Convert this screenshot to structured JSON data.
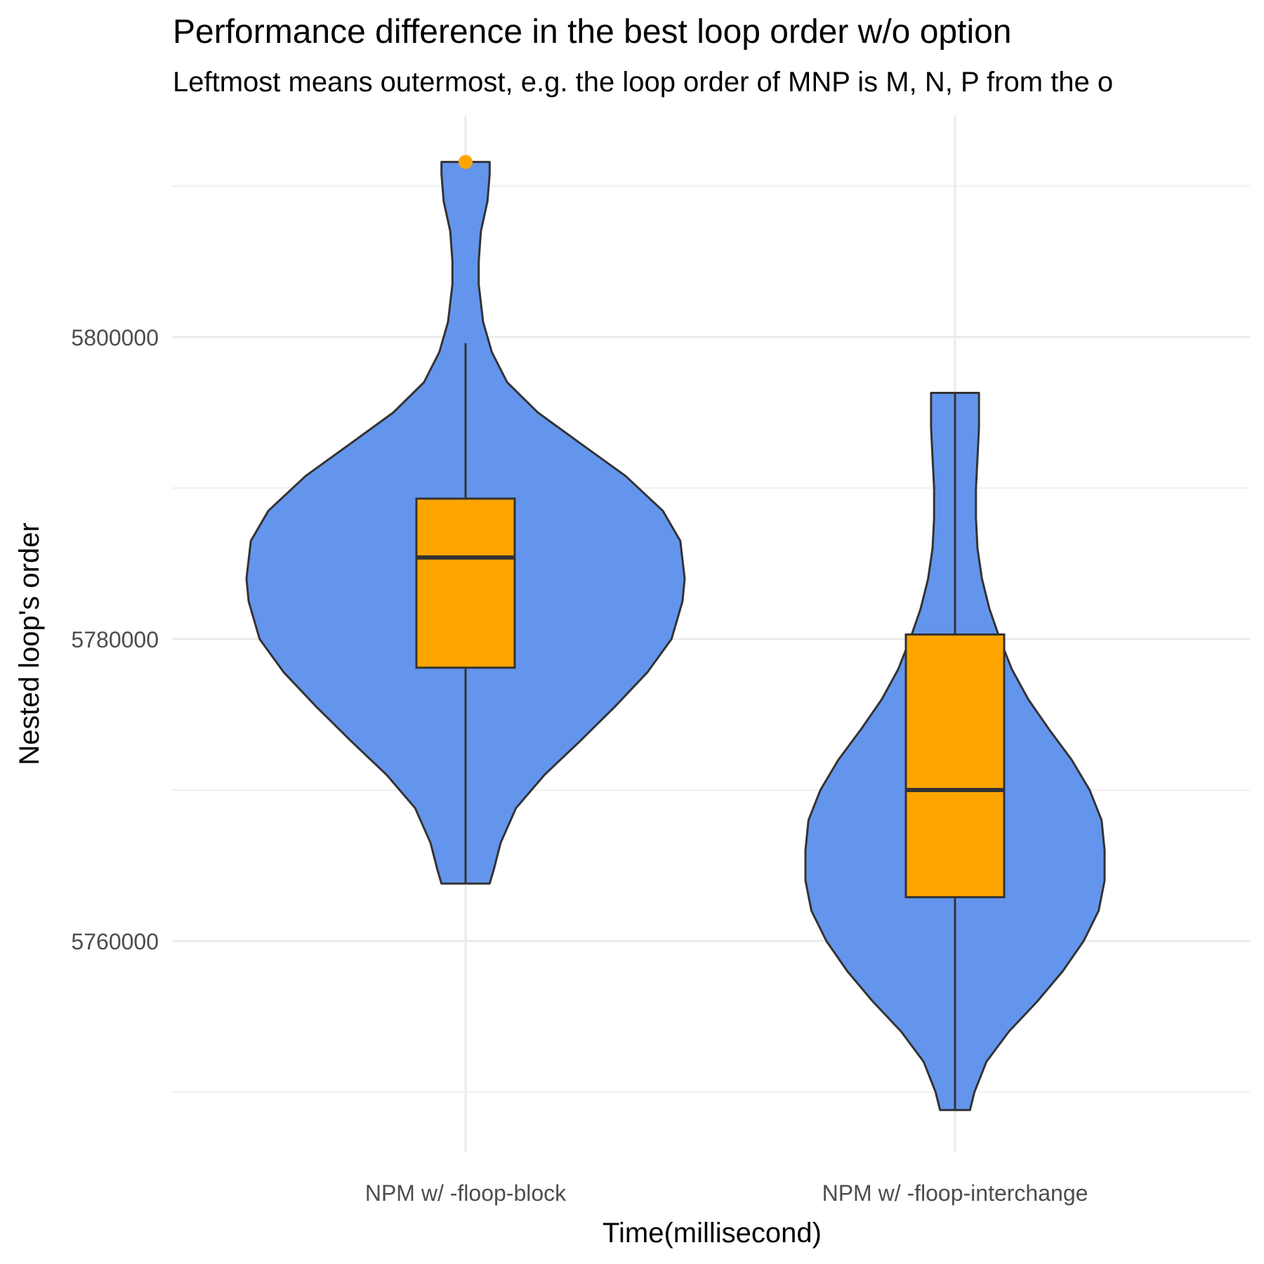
{
  "colors": {
    "violin_fill": "#6495ED",
    "box_fill": "#FFA500",
    "outlier": "#FFA500",
    "outline": "#333333",
    "grid": "#EBEBEB",
    "tick_text": "#4D4D4D",
    "text": "#000000"
  },
  "chart_data": {
    "type": "violin",
    "title": "Performance difference in the best loop order w/o option",
    "subtitle": "Leftmost means outermost, e.g. the loop order of MNP is M, N, P from the o",
    "xlabel": "Time(millisecond)",
    "ylabel": "Nested loop's order",
    "ylim": [
      5747000,
      5822000
    ],
    "y_ticks": [
      5760000,
      5780000,
      5800000
    ],
    "y_tick_labels": [
      "5760000",
      "5780000",
      "5800000"
    ],
    "grid": true,
    "legend": "none",
    "categories": [
      "NPM w/ -floop-block",
      "NPM w/ -floop-interchange"
    ],
    "groups": [
      {
        "category": "NPM w/ -floop-block",
        "ymin": 5763800,
        "ymax": 5811600,
        "box": {
          "lower_whisker": 5763800,
          "q1": 5778100,
          "median": 5785400,
          "q3": 5789300,
          "upper_whisker": 5799600
        },
        "outliers": [
          5811600
        ],
        "density": [
          [
            5763800,
            0.11
          ],
          [
            5764800,
            0.13
          ],
          [
            5766500,
            0.16
          ],
          [
            5768800,
            0.23
          ],
          [
            5771000,
            0.36
          ],
          [
            5773200,
            0.52
          ],
          [
            5775500,
            0.68
          ],
          [
            5777800,
            0.83
          ],
          [
            5780000,
            0.94
          ],
          [
            5782500,
            0.99
          ],
          [
            5784000,
            1.0
          ],
          [
            5786500,
            0.98
          ],
          [
            5788500,
            0.9
          ],
          [
            5790800,
            0.73
          ],
          [
            5793000,
            0.52
          ],
          [
            5795000,
            0.33
          ],
          [
            5797000,
            0.19
          ],
          [
            5799000,
            0.12
          ],
          [
            5801000,
            0.08
          ],
          [
            5803500,
            0.06
          ],
          [
            5805000,
            0.06
          ],
          [
            5807000,
            0.07
          ],
          [
            5809000,
            0.1
          ],
          [
            5810800,
            0.11
          ],
          [
            5811600,
            0.11
          ]
        ]
      },
      {
        "category": "NPM w/ -floop-interchange",
        "ymin": 5748800,
        "ymax": 5796300,
        "box": {
          "lower_whisker": 5748800,
          "q1": 5762900,
          "median": 5770000,
          "q3": 5780300,
          "upper_whisker": 5796300
        },
        "outliers": [],
        "density": [
          [
            5748800,
            0.1
          ],
          [
            5750000,
            0.13
          ],
          [
            5752000,
            0.21
          ],
          [
            5754000,
            0.36
          ],
          [
            5756000,
            0.55
          ],
          [
            5758000,
            0.72
          ],
          [
            5760000,
            0.86
          ],
          [
            5762000,
            0.96
          ],
          [
            5764000,
            1.0
          ],
          [
            5766000,
            1.0
          ],
          [
            5768000,
            0.98
          ],
          [
            5770000,
            0.9
          ],
          [
            5772000,
            0.78
          ],
          [
            5774000,
            0.63
          ],
          [
            5776000,
            0.49
          ],
          [
            5778000,
            0.38
          ],
          [
            5780000,
            0.3
          ],
          [
            5782000,
            0.23
          ],
          [
            5784000,
            0.18
          ],
          [
            5786000,
            0.15
          ],
          [
            5788000,
            0.14
          ],
          [
            5790000,
            0.14
          ],
          [
            5792000,
            0.15
          ],
          [
            5794000,
            0.16
          ],
          [
            5795500,
            0.16
          ],
          [
            5796300,
            0.16
          ]
        ]
      }
    ]
  }
}
